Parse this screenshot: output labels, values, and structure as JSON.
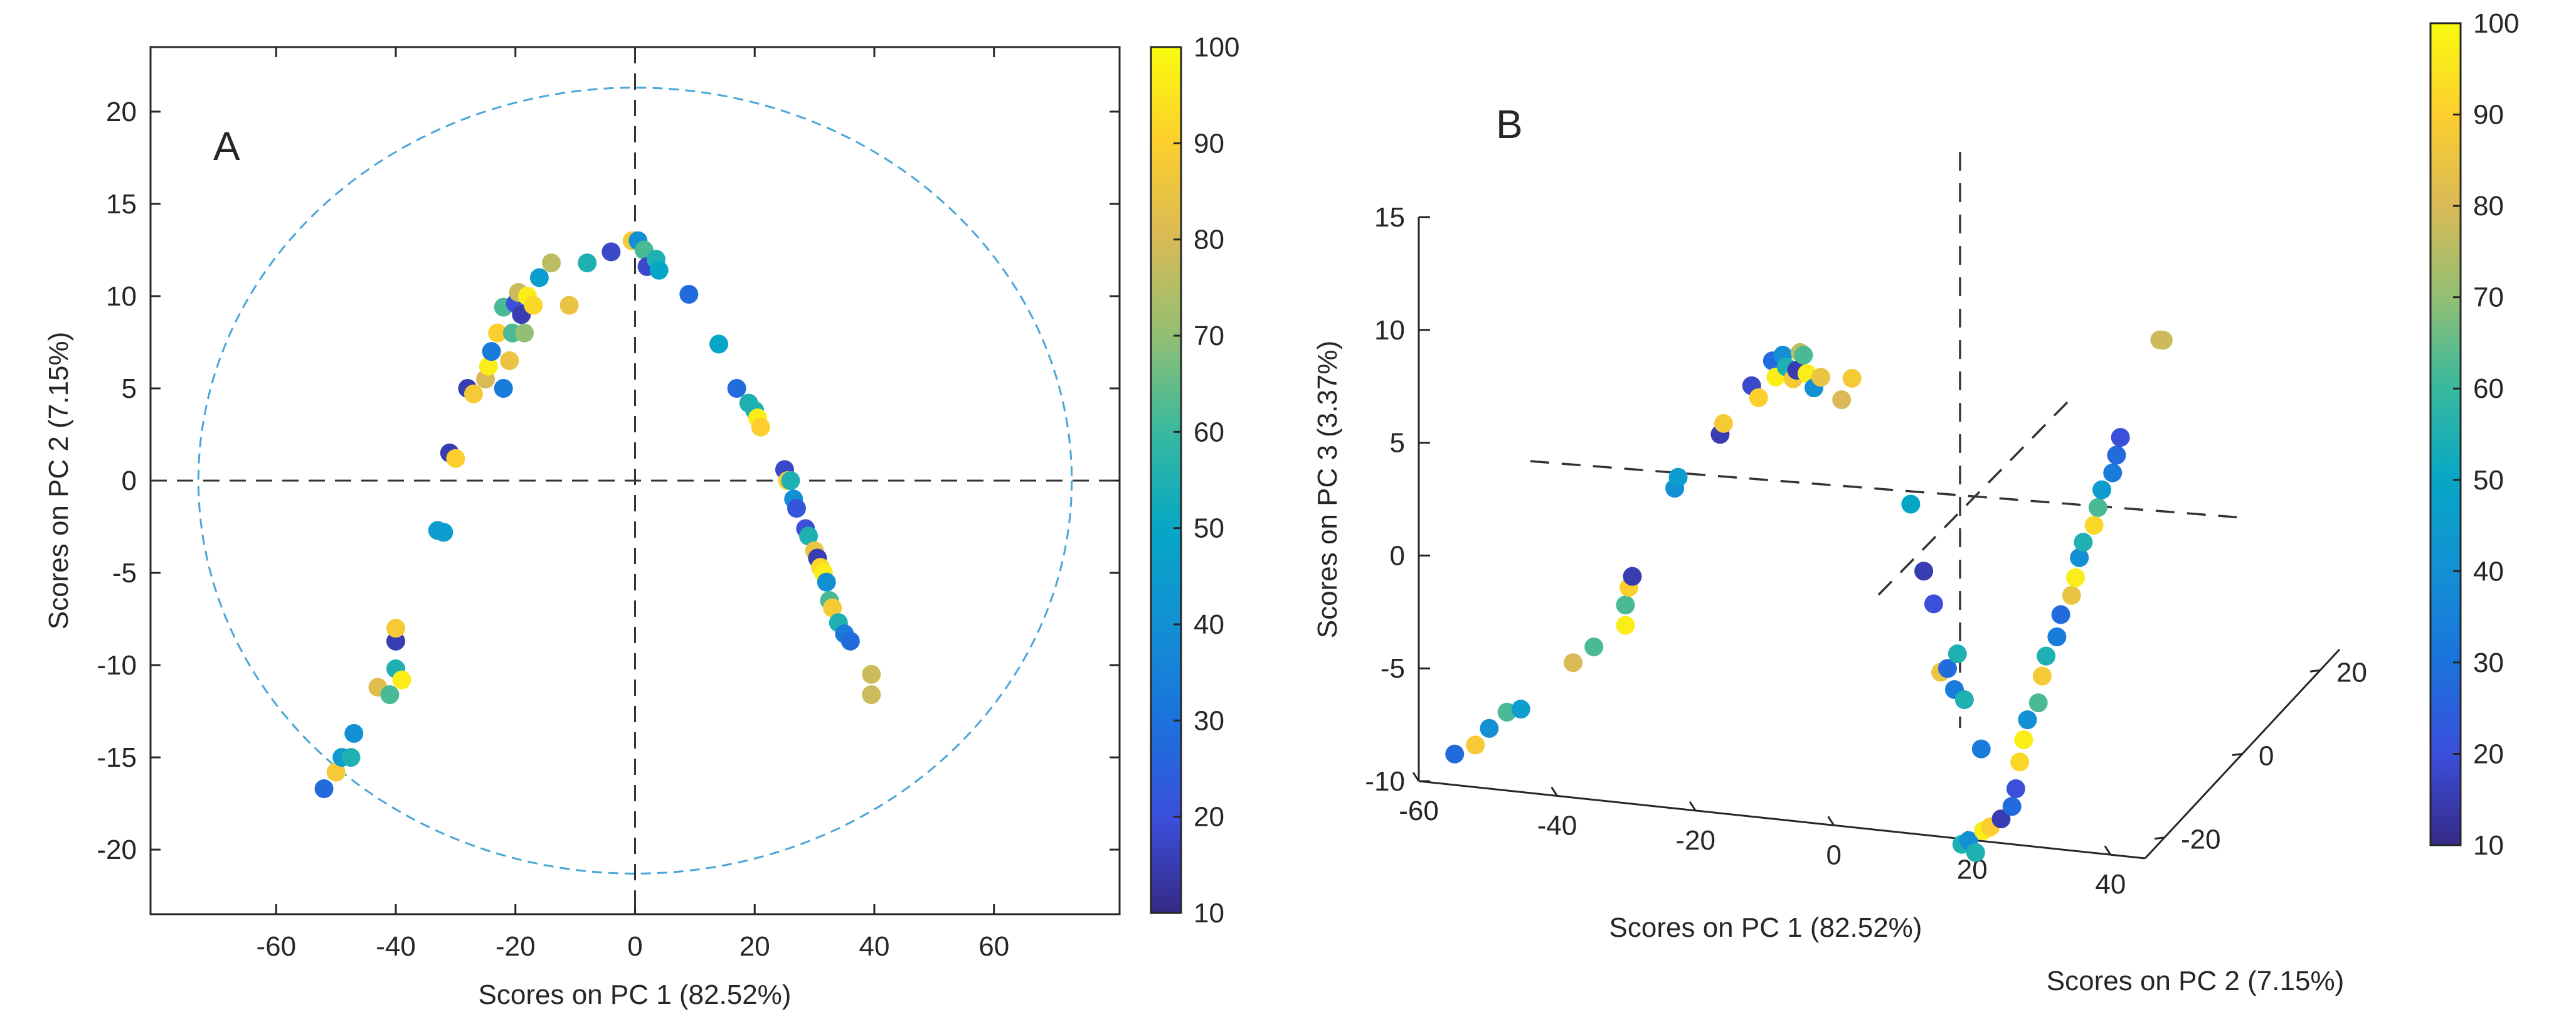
{
  "chart_data": [
    {
      "panel": "A",
      "type": "scatter",
      "xlabel": "Scores on PC 1 (82.52%)",
      "ylabel": "Scores on PC 2 (7.15%)",
      "xlim": [
        -81,
        81
      ],
      "ylim": [
        -23.5,
        23.5
      ],
      "xticks": [
        -60,
        -40,
        -20,
        0,
        20,
        40,
        60
      ],
      "yticks": [
        -20,
        -15,
        -10,
        -5,
        0,
        5,
        10,
        15,
        20
      ],
      "reference_lines": {
        "x": 0,
        "y": 0
      },
      "confidence_ellipse": {
        "rx": 73,
        "ry": 21.3,
        "color": "#4aa6d8"
      },
      "colorbar": {
        "min": 10,
        "max": 100,
        "ticks": [
          10,
          20,
          30,
          40,
          50,
          60,
          70,
          80,
          90,
          100
        ]
      },
      "points": [
        {
          "x": -52,
          "y": -16.7,
          "c": 28
        },
        {
          "x": -50,
          "y": -15.8,
          "c": 88
        },
        {
          "x": -49,
          "y": -15,
          "c": 45
        },
        {
          "x": -47.5,
          "y": -15,
          "c": 55
        },
        {
          "x": -47,
          "y": -13.7,
          "c": 40
        },
        {
          "x": -43,
          "y": -11.2,
          "c": 82
        },
        {
          "x": -41,
          "y": -11.6,
          "c": 62
        },
        {
          "x": -40,
          "y": -10.2,
          "c": 55
        },
        {
          "x": -39,
          "y": -10.8,
          "c": 97
        },
        {
          "x": -40,
          "y": -8.7,
          "c": 15
        },
        {
          "x": -40,
          "y": -8,
          "c": 88
        },
        {
          "x": -33,
          "y": -2.7,
          "c": 45
        },
        {
          "x": -32,
          "y": -2.8,
          "c": 45
        },
        {
          "x": -31,
          "y": 1.5,
          "c": 15
        },
        {
          "x": -30,
          "y": 1.2,
          "c": 90
        },
        {
          "x": -28,
          "y": 5,
          "c": 15
        },
        {
          "x": -27,
          "y": 4.7,
          "c": 88
        },
        {
          "x": -25,
          "y": 5.5,
          "c": 80
        },
        {
          "x": -24.5,
          "y": 6.2,
          "c": 97
        },
        {
          "x": -24,
          "y": 7,
          "c": 33
        },
        {
          "x": -23,
          "y": 8,
          "c": 90
        },
        {
          "x": -22,
          "y": 5,
          "c": 33
        },
        {
          "x": -22,
          "y": 9.4,
          "c": 62
        },
        {
          "x": -21,
          "y": 6.5,
          "c": 85
        },
        {
          "x": -20.5,
          "y": 8,
          "c": 62
        },
        {
          "x": -20,
          "y": 9.6,
          "c": 20
        },
        {
          "x": -19.5,
          "y": 10.2,
          "c": 78
        },
        {
          "x": -19,
          "y": 9,
          "c": 15
        },
        {
          "x": -18.5,
          "y": 8,
          "c": 70
        },
        {
          "x": -18,
          "y": 10,
          "c": 97
        },
        {
          "x": -17,
          "y": 9.5,
          "c": 92
        },
        {
          "x": -16,
          "y": 11,
          "c": 45
        },
        {
          "x": -14,
          "y": 11.8,
          "c": 76
        },
        {
          "x": -11,
          "y": 9.5,
          "c": 85
        },
        {
          "x": -8,
          "y": 11.8,
          "c": 55
        },
        {
          "x": -4,
          "y": 12.4,
          "c": 18
        },
        {
          "x": -0.5,
          "y": 13,
          "c": 88
        },
        {
          "x": 0.5,
          "y": 13,
          "c": 40
        },
        {
          "x": 1.5,
          "y": 12.5,
          "c": 62
        },
        {
          "x": 2,
          "y": 11.6,
          "c": 18
        },
        {
          "x": 3.5,
          "y": 12,
          "c": 55
        },
        {
          "x": 4,
          "y": 11.4,
          "c": 50
        },
        {
          "x": 9,
          "y": 10.1,
          "c": 28
        },
        {
          "x": 14,
          "y": 7.4,
          "c": 50
        },
        {
          "x": 17,
          "y": 5,
          "c": 28
        },
        {
          "x": 19,
          "y": 4.2,
          "c": 55
        },
        {
          "x": 20,
          "y": 3.8,
          "c": 55
        },
        {
          "x": 20.5,
          "y": 3.4,
          "c": 97
        },
        {
          "x": 21,
          "y": 2.9,
          "c": 90
        },
        {
          "x": 25,
          "y": 0.6,
          "c": 18
        },
        {
          "x": 25.5,
          "y": 0,
          "c": 90
        },
        {
          "x": 26,
          "y": 0,
          "c": 55
        },
        {
          "x": 26.5,
          "y": -1,
          "c": 40
        },
        {
          "x": 27,
          "y": -1.5,
          "c": 22
        },
        {
          "x": 28.5,
          "y": -2.6,
          "c": 20
        },
        {
          "x": 29,
          "y": -3,
          "c": 55
        },
        {
          "x": 30,
          "y": -3.8,
          "c": 85
        },
        {
          "x": 30.5,
          "y": -4.2,
          "c": 15
        },
        {
          "x": 31,
          "y": -4.7,
          "c": 92
        },
        {
          "x": 31.5,
          "y": -5,
          "c": 97
        },
        {
          "x": 32,
          "y": -5.5,
          "c": 40
        },
        {
          "x": 32.5,
          "y": -6.5,
          "c": 62
        },
        {
          "x": 33,
          "y": -6.9,
          "c": 88
        },
        {
          "x": 34,
          "y": -7.7,
          "c": 55
        },
        {
          "x": 35,
          "y": -8.3,
          "c": 33
        },
        {
          "x": 36,
          "y": -8.7,
          "c": 28
        },
        {
          "x": 39.5,
          "y": -10.5,
          "c": 78
        },
        {
          "x": 39.5,
          "y": -11.6,
          "c": 78
        }
      ]
    },
    {
      "panel": "B",
      "type": "scatter",
      "xlabel": "Scores on PC 1 (82.52%)",
      "ylabel": "Scores on PC 2 (7.15%)",
      "zlabel": "Scores on PC 3 (3.37%)",
      "xticks": [
        -60,
        -40,
        -20,
        0,
        20,
        40
      ],
      "yticks": [
        -20,
        0,
        20
      ],
      "zticks": [
        -10,
        -5,
        0,
        5,
        10,
        15
      ],
      "xlim": [
        -60,
        45
      ],
      "ylim": [
        -25,
        25
      ],
      "zlim": [
        -10,
        15
      ],
      "colorbar": {
        "min": 10,
        "max": 100,
        "ticks": [
          10,
          20,
          30,
          40,
          50,
          60,
          70,
          80,
          90,
          100
        ]
      },
      "points": [
        {
          "x": -52,
          "y": -5,
          "z": -6.5,
          "c": 28
        },
        {
          "x": -49,
          "y": -5,
          "z": -6,
          "c": 88
        },
        {
          "x": -47,
          "y": -5,
          "z": -5.2,
          "c": 40
        },
        {
          "x": -45,
          "y": -4,
          "z": -4.6,
          "c": 62
        },
        {
          "x": -43,
          "y": -4,
          "z": -4.4,
          "c": 45
        },
        {
          "x": -36,
          "y": -3,
          "z": -2.3,
          "c": 80
        },
        {
          "x": -33,
          "y": -3,
          "z": -1.5,
          "c": 62
        },
        {
          "x": -29,
          "y": -2,
          "z": -0.6,
          "c": 97
        },
        {
          "x": -29,
          "y": -2,
          "z": 0.3,
          "c": 62
        },
        {
          "x": -28.5,
          "y": -2,
          "z": 1.1,
          "c": 90
        },
        {
          "x": -28,
          "y": -2,
          "z": 1.6,
          "c": 15
        },
        {
          "x": -23,
          "y": 0,
          "z": 5.3,
          "c": 40
        },
        {
          "x": -22.5,
          "y": 0,
          "z": 5.8,
          "c": 45
        },
        {
          "x": -17,
          "y": 1,
          "z": 7.7,
          "c": 15
        },
        {
          "x": -16.5,
          "y": 1,
          "z": 8.2,
          "c": 88
        },
        {
          "x": -13,
          "y": 2,
          "z": 9.8,
          "c": 18
        },
        {
          "x": -12,
          "y": 2,
          "z": 9.3,
          "c": 90
        },
        {
          "x": -10,
          "y": 2,
          "z": 11,
          "c": 28
        },
        {
          "x": -9.5,
          "y": 2,
          "z": 10.3,
          "c": 97
        },
        {
          "x": -8.5,
          "y": 2,
          "z": 11.3,
          "c": 40
        },
        {
          "x": -8,
          "y": 2,
          "z": 10.8,
          "c": 55
        },
        {
          "x": -7,
          "y": 2,
          "z": 10.3,
          "c": 88
        },
        {
          "x": -6.5,
          "y": 2,
          "z": 10.7,
          "c": 15
        },
        {
          "x": -6,
          "y": 2,
          "z": 11.5,
          "c": 76
        },
        {
          "x": -5.5,
          "y": 2,
          "z": 11.4,
          "c": 62
        },
        {
          "x": -5,
          "y": 2,
          "z": 10.6,
          "c": 97
        },
        {
          "x": -4,
          "y": 2,
          "z": 10,
          "c": 40
        },
        {
          "x": -3,
          "y": 2,
          "z": 10.5,
          "c": 85
        },
        {
          "x": 0,
          "y": 2,
          "z": 9.6,
          "c": 80
        },
        {
          "x": 1.5,
          "y": 2,
          "z": 10.6,
          "c": 88
        },
        {
          "x": 10,
          "y": 2,
          "z": 5.3,
          "c": 50
        },
        {
          "x": 13,
          "y": 0,
          "z": 2.8,
          "c": 15
        },
        {
          "x": 15,
          "y": -1,
          "z": 1.6,
          "c": 20
        },
        {
          "x": 16,
          "y": -1,
          "z": -1.4,
          "c": 85
        },
        {
          "x": 17,
          "y": -1,
          "z": -1.2,
          "c": 28
        },
        {
          "x": 18,
          "y": -1,
          "z": -2.1,
          "c": 33
        },
        {
          "x": 19,
          "y": -2,
          "z": -0.3,
          "c": 55
        },
        {
          "x": 20,
          "y": -2,
          "z": -2.3,
          "c": 55
        },
        {
          "x": 23,
          "y": -3,
          "z": -4.2,
          "c": 33
        },
        {
          "x": 23,
          "y": -8,
          "z": -7.5,
          "c": 55
        },
        {
          "x": 24,
          "y": -8,
          "z": -7.3,
          "c": 40
        },
        {
          "x": 25,
          "y": -8,
          "z": -7.8,
          "c": 55
        },
        {
          "x": 25,
          "y": -6,
          "z": -7.2,
          "c": 97
        },
        {
          "x": 26,
          "y": -6,
          "z": -7,
          "c": 90
        },
        {
          "x": 27,
          "y": -5,
          "z": -6.8,
          "c": 15
        },
        {
          "x": 28,
          "y": -4,
          "z": -6.4,
          "c": 28
        },
        {
          "x": 28,
          "y": -3,
          "z": -5.8,
          "c": 20
        },
        {
          "x": 28,
          "y": -2,
          "z": -4.8,
          "c": 92
        },
        {
          "x": 28,
          "y": -1,
          "z": -4,
          "c": 97
        },
        {
          "x": 28,
          "y": 0,
          "z": -3.3,
          "c": 40
        },
        {
          "x": 29,
          "y": 1,
          "z": -2.7,
          "c": 62
        },
        {
          "x": 29,
          "y": 2,
          "z": -1.7,
          "c": 88
        },
        {
          "x": 29,
          "y": 3,
          "z": -1,
          "c": 55
        },
        {
          "x": 30,
          "y": 4,
          "z": -0.3,
          "c": 33
        },
        {
          "x": 30,
          "y": 5,
          "z": 0.5,
          "c": 28
        },
        {
          "x": 31,
          "y": 6,
          "z": 1.2,
          "c": 85
        },
        {
          "x": 31,
          "y": 7,
          "z": 1.8,
          "c": 97
        },
        {
          "x": 31,
          "y": 8,
          "z": 2.5,
          "c": 40
        },
        {
          "x": 31,
          "y": 9,
          "z": 3,
          "c": 55
        },
        {
          "x": 32,
          "y": 10,
          "z": 3.6,
          "c": 92
        },
        {
          "x": 32,
          "y": 11,
          "z": 4.2,
          "c": 62
        },
        {
          "x": 32,
          "y": 12,
          "z": 4.8,
          "c": 45
        },
        {
          "x": 33,
          "y": 13,
          "z": 5.4,
          "c": 33
        },
        {
          "x": 33,
          "y": 14,
          "z": 6,
          "c": 28
        },
        {
          "x": 33,
          "y": 15,
          "z": 6.6,
          "c": 20
        },
        {
          "x": 37,
          "y": 18,
          "z": 10.5,
          "c": 78
        },
        {
          "x": 37.5,
          "y": 18,
          "z": 10.5,
          "c": 78
        }
      ]
    }
  ],
  "panel_labels": {
    "a": "A",
    "b": "B"
  }
}
